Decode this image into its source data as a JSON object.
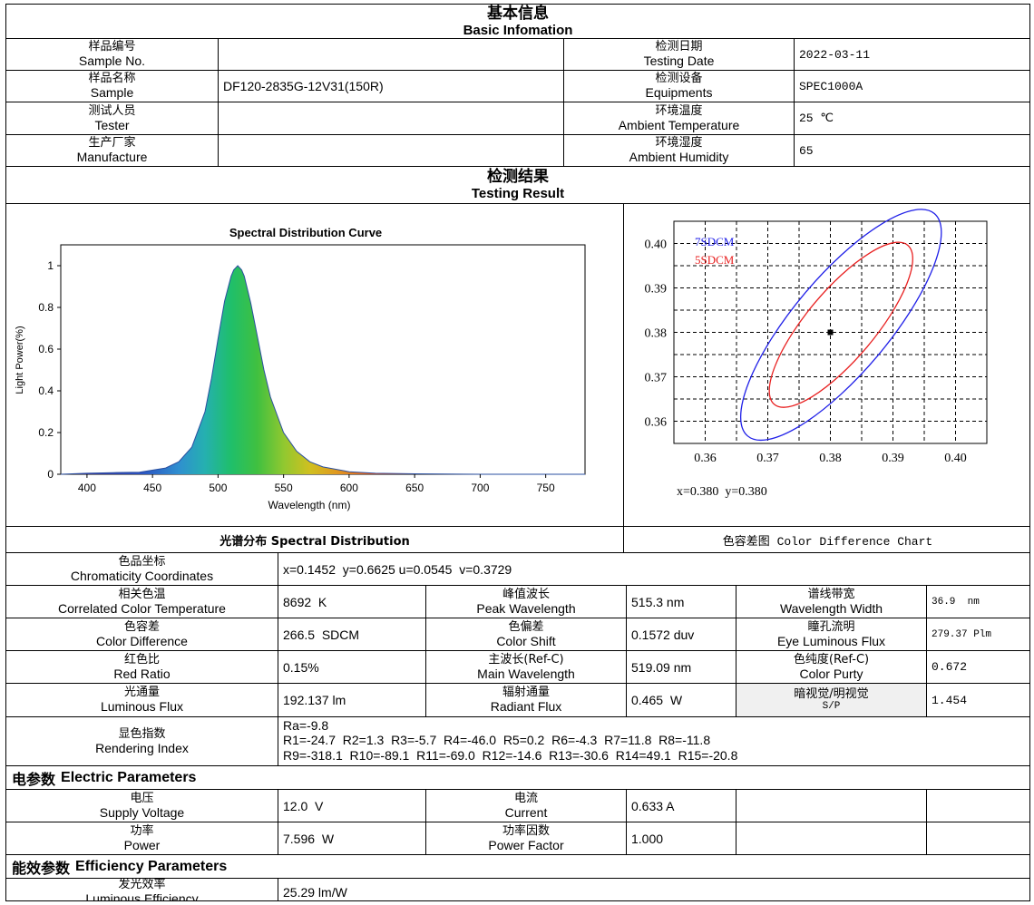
{
  "basic": {
    "title_zh": "基本信息",
    "title_en": "Basic Infomation",
    "sample_no_zh": "样品编号",
    "sample_no_en": "Sample No.",
    "sample_no_val": "",
    "testing_date_zh": "检测日期",
    "testing_date_en": "Testing Date",
    "testing_date_val": "2022-03-11",
    "sample_zh": "样品名称",
    "sample_en": "Sample",
    "sample_val": "DF120-2835G-12V31(150R)",
    "equipments_zh": "检测设备",
    "equipments_en": "Equipments",
    "equipments_val": "SPEC1000A",
    "tester_zh": "测试人员",
    "tester_en": "Tester",
    "tester_val": "",
    "amb_temp_zh": "环境温度",
    "amb_temp_en": "Ambient Temperature",
    "amb_temp_val": "25 ℃",
    "manufacture_zh": "生产厂家",
    "manufacture_en": "Manufacture",
    "manufacture_val": "",
    "amb_hum_zh": "环境湿度",
    "amb_hum_en": "Ambient Humidity",
    "amb_hum_val": "65"
  },
  "result": {
    "title_zh": "检测结果",
    "title_en": "Testing Result",
    "spectral_label": "光谱分布 Spectral Distribution",
    "color_diff_label": "色容差图 Color Difference Chart",
    "cd_readout": "x=0.380  y=0.380"
  },
  "chart_data": [
    {
      "type": "line",
      "title": "Spectral Distribution Curve",
      "xlabel": "Wavelength (nm)",
      "ylabel": "Light Power(%)",
      "xlim": [
        380,
        780
      ],
      "ylim": [
        0,
        1.1
      ],
      "x_ticks": [
        400,
        450,
        500,
        550,
        600,
        650,
        700,
        750
      ],
      "y_ticks": [
        0,
        0.2,
        0.4,
        0.6,
        0.8,
        1
      ],
      "x": [
        380,
        400,
        420,
        440,
        460,
        470,
        480,
        490,
        495,
        500,
        505,
        510,
        512,
        515,
        518,
        520,
        525,
        530,
        535,
        540,
        550,
        560,
        570,
        580,
        600,
        620,
        650,
        700,
        750,
        780
      ],
      "y": [
        0,
        0.005,
        0.008,
        0.01,
        0.03,
        0.06,
        0.13,
        0.3,
        0.46,
        0.65,
        0.83,
        0.95,
        0.98,
        1.0,
        0.98,
        0.95,
        0.82,
        0.66,
        0.5,
        0.37,
        0.2,
        0.11,
        0.06,
        0.035,
        0.012,
        0.005,
        0.002,
        0,
        0,
        0
      ]
    },
    {
      "type": "scatter",
      "title": "",
      "xlabel": "",
      "ylabel": "",
      "xlim": [
        0.355,
        0.405
      ],
      "ylim": [
        0.355,
        0.405
      ],
      "x_ticks": [
        0.36,
        0.37,
        0.38,
        0.39,
        0.4
      ],
      "y_ticks": [
        0.36,
        0.37,
        0.38,
        0.39,
        0.4
      ],
      "x_tick_labels": [
        "0.36",
        "0.37",
        "0.38",
        "0.39",
        "0.40"
      ],
      "y_tick_labels": [
        "0.36",
        "0.37",
        "0.38",
        "0.39",
        "0.40"
      ],
      "grid": true,
      "point": {
        "x": 0.38,
        "y": 0.38
      },
      "ellipses": [
        {
          "name": "7SDCM",
          "color": "#2020e8",
          "cx": 0.3817,
          "cy": 0.3817,
          "rx": 0.0232,
          "ry": 0.0108,
          "angle_deg": 50
        },
        {
          "name": "5SDCM",
          "color": "#e82020",
          "cx": 0.3817,
          "cy": 0.3817,
          "rx": 0.0166,
          "ry": 0.0077,
          "angle_deg": 50
        }
      ]
    }
  ],
  "photometric": {
    "chroma_zh": "色品坐标",
    "chroma_en": "Chromaticity Coordinates",
    "chroma_val": "x=0.1452  y=0.6625 u=0.0545  v=0.3729",
    "cct_zh": "相关色温",
    "cct_en": "Correlated Color Temperature",
    "cct_val": "8692  K",
    "peak_zh": "峰值波长",
    "peak_en": "Peak Wavelength",
    "peak_val": "515.3 nm",
    "width_zh": "谱线带宽",
    "width_en": "Wavelength Width",
    "width_val": "36.9  nm",
    "cdiff_zh": "色容差",
    "cdiff_en": "Color Difference",
    "cdiff_val": "266.5  SDCM",
    "cshift_zh": "色偏差",
    "cshift_en": "Color Shift",
    "cshift_val": "0.1572 duv",
    "eye_zh": "瞳孔流明",
    "eye_en": "Eye Luminous Flux",
    "eye_val": "279.37 Plm",
    "red_zh": "红色比",
    "red_en": "Red Ratio",
    "red_val": "0.15%",
    "mainwl_zh": "主波长(Ref-C)",
    "mainwl_en": "Main Wavelength",
    "mainwl_val": "519.09 nm",
    "purity_zh": "色纯度(Ref-C)",
    "purity_en": "Color Purty",
    "purity_val": "0.672",
    "lumflux_zh": "光通量",
    "lumflux_en": "Luminous Flux",
    "lumflux_val": "192.137 lm",
    "radflux_zh": "辐射通量",
    "radflux_en": "Radiant Flux",
    "radflux_val": "0.465  W",
    "sp_zh": "暗视觉/明视觉",
    "sp_en": "S/P",
    "sp_val": "1.454",
    "cri_zh": "显色指数",
    "cri_en": "Rendering Index",
    "ra_line": "Ra=-9.8",
    "r_line1": "R1=-24.7  R2=1.3  R3=-5.7  R4=-46.0  R5=0.2  R6=-4.3  R7=11.8  R8=-11.8",
    "r_line2": "R9=-318.1  R10=-89.1  R11=-69.0  R12=-14.6  R13=-30.6  R14=49.1  R15=-20.8"
  },
  "electric": {
    "header_zh": "电参数",
    "header_en": "Electric Parameters",
    "volt_zh": "电压",
    "volt_en": "Supply Voltage",
    "volt_val": "12.0  V",
    "curr_zh": "电流",
    "curr_en": "Current",
    "curr_val": "0.633 A",
    "power_zh": "功率",
    "power_en": "Power",
    "power_val": "7.596  W",
    "pf_zh": "功率因数",
    "pf_en": "Power Factor",
    "pf_val": "1.000"
  },
  "efficiency": {
    "header_zh": "能效参数",
    "header_en": "Efficiency Parameters",
    "eff_zh": "发光效率",
    "eff_en": "Luminous Efficiency",
    "eff_val": "25.29 lm/W"
  }
}
